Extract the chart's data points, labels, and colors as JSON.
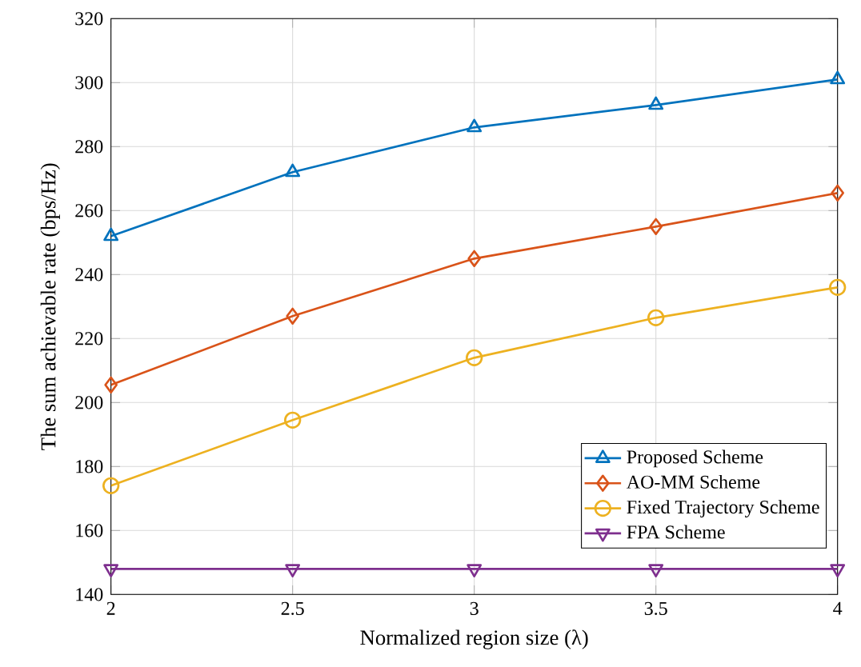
{
  "chart_data": {
    "type": "line",
    "xlabel": "Normalized region size (λ)",
    "ylabel": "The sum achievable rate (bps/Hz)",
    "x": [
      2,
      2.5,
      3,
      3.5,
      4
    ],
    "series": [
      {
        "name": "Proposed Scheme",
        "color": "#0072bd",
        "marker": "triangle",
        "values": [
          252,
          272,
          286,
          293,
          301
        ]
      },
      {
        "name": "AO-MM Scheme",
        "color": "#d95319",
        "marker": "diamond",
        "values": [
          205.5,
          227,
          245,
          255,
          265.5
        ]
      },
      {
        "name": "Fixed Trajectory Scheme",
        "color": "#edb120",
        "marker": "circle",
        "values": [
          174,
          194.5,
          214,
          226.5,
          236
        ]
      },
      {
        "name": "FPA Scheme",
        "color": "#7e2f8e",
        "marker": "triangle down",
        "values": [
          148,
          148,
          148,
          148,
          148
        ]
      }
    ],
    "xlim": [
      2,
      4
    ],
    "xticks": [
      2,
      2.5,
      3,
      3.5,
      4
    ],
    "ylim": [
      140,
      320
    ],
    "yticks": [
      140,
      160,
      180,
      200,
      220,
      240,
      260,
      280,
      300,
      320
    ],
    "grid": true,
    "legend": "bottom right",
    "line_style": "solid"
  }
}
